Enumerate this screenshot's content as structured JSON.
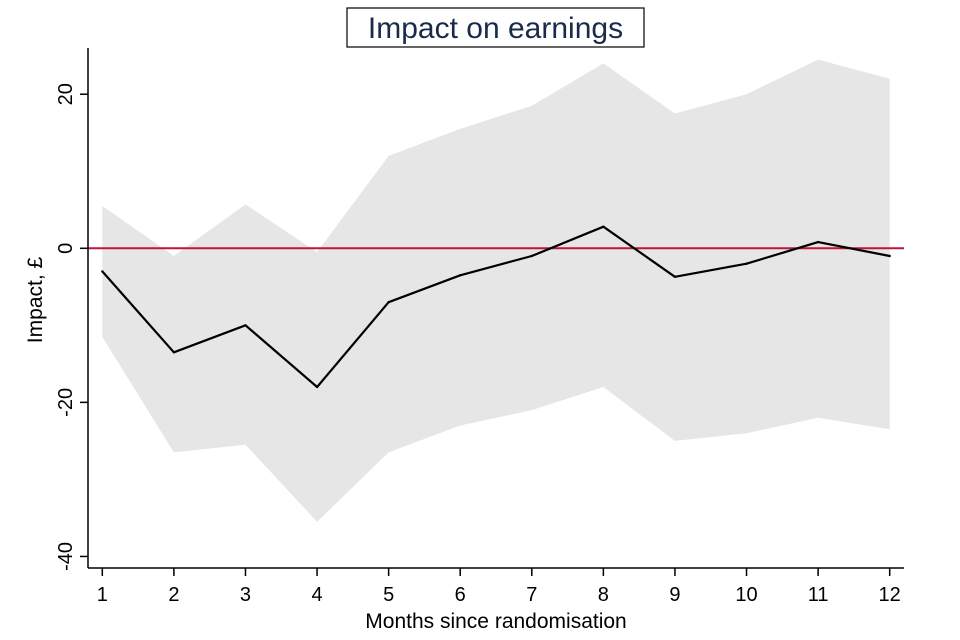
{
  "chart_data": {
    "type": "line",
    "title": "Impact on earnings",
    "xlabel": "Months since randomisation",
    "ylabel": "Impact, £",
    "x": [
      1,
      2,
      3,
      4,
      5,
      6,
      7,
      8,
      9,
      10,
      11,
      12
    ],
    "xlim": [
      0.8,
      12.2
    ],
    "ylim": [
      -41.5,
      26
    ],
    "x_ticks": [
      1,
      2,
      3,
      4,
      5,
      6,
      7,
      8,
      9,
      10,
      11,
      12
    ],
    "y_ticks": [
      -40,
      -20,
      0,
      20
    ],
    "grid": false,
    "legend": "none",
    "series": [
      {
        "kind": "band",
        "color": "#e6e6e6",
        "upper": [
          5.5,
          -1,
          5.7,
          -0.5,
          12,
          15.5,
          18.5,
          24,
          17.5,
          20,
          24.5,
          22
        ],
        "lower": [
          -11.5,
          -26.5,
          -25.5,
          -35.5,
          -26.5,
          -23,
          -21,
          -18,
          -25,
          -24,
          -22,
          -23.5
        ]
      },
      {
        "kind": "line",
        "color": "#000000",
        "values": [
          -3,
          -13.5,
          -10,
          -18,
          -7,
          -3.5,
          -1,
          2.8,
          -3.7,
          -2,
          0.8,
          -1
        ]
      }
    ],
    "reference_line": {
      "y": 0,
      "color": "#c0143c"
    }
  }
}
